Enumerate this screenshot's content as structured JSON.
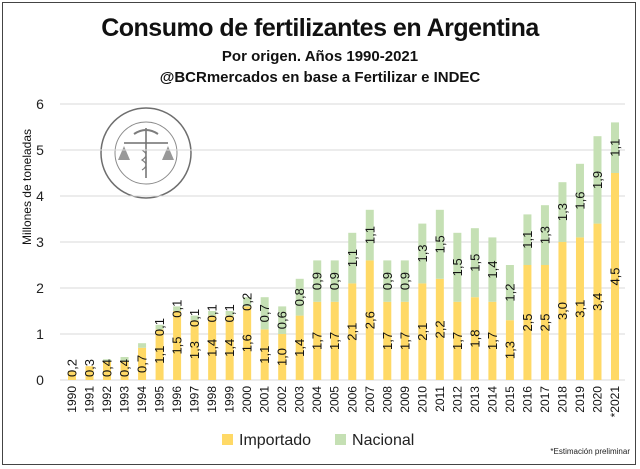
{
  "chart_data": {
    "type": "bar",
    "stacked": true,
    "title": "Consumo de fertilizantes en Argentina",
    "subtitle": "Por origen. Años 1990-2021",
    "source": "@BCRmercados en base a Fertilizar e INDEC",
    "ylabel": "Millones de toneladas",
    "ylim": [
      0,
      6
    ],
    "yticks": [
      "0",
      "1",
      "2",
      "3",
      "4",
      "5",
      "6"
    ],
    "grid": true,
    "legend_position": "bottom",
    "categories": [
      "1990",
      "1991",
      "1992",
      "1993",
      "1994",
      "1995",
      "1996",
      "1997",
      "1998",
      "1999",
      "2000",
      "2001",
      "2002",
      "2003",
      "2004",
      "2005",
      "2006",
      "2007",
      "2008",
      "2009",
      "2010",
      "2011",
      "2012",
      "2013",
      "2014",
      "2015",
      "2016",
      "2017",
      "2018",
      "2019",
      "2020",
      "*2021"
    ],
    "series": [
      {
        "name": "Importado",
        "color": "#FFD966",
        "values": [
          0.2,
          0.3,
          0.4,
          0.4,
          0.7,
          1.1,
          1.5,
          1.3,
          1.4,
          1.4,
          1.6,
          1.1,
          1.0,
          1.4,
          1.7,
          1.7,
          2.1,
          2.6,
          1.7,
          1.7,
          2.1,
          2.2,
          1.7,
          1.8,
          1.7,
          1.3,
          2.5,
          2.5,
          3.0,
          3.1,
          3.4,
          4.5
        ],
        "labels": [
          "0,2",
          "0,3",
          "0,4",
          "0,4",
          "0,7",
          "1,1",
          "1,5",
          "1,3",
          "1,4",
          "1,4",
          "1,6",
          "1,1",
          "1,0",
          "1,4",
          "1,7",
          "1,7",
          "2,1",
          "2,6",
          "1,7",
          "1,7",
          "2,1",
          "2,2",
          "1,7",
          "1,8",
          "1,7",
          "1,3",
          "2,5",
          "2,5",
          "3,0",
          "3,1",
          "3,4",
          "4,5"
        ]
      },
      {
        "name": "Nacional",
        "color": "#C5E0B4",
        "values": [
          0,
          0,
          0.05,
          0.1,
          0.1,
          0.1,
          0.1,
          0.1,
          0.1,
          0.1,
          0.2,
          0.7,
          0.6,
          0.8,
          0.9,
          0.9,
          1.1,
          1.1,
          0.9,
          0.9,
          1.3,
          1.5,
          1.5,
          1.5,
          1.4,
          1.2,
          1.1,
          1.3,
          1.3,
          1.6,
          1.9,
          1.1
        ],
        "labels": [
          "",
          "",
          "",
          "",
          "",
          "0,1",
          "0,1",
          "0,1",
          "0,1",
          "0,1",
          "0,2",
          "0,7",
          "0,6",
          "0,8",
          "0,9",
          "0,9",
          "1,1",
          "1,1",
          "0,9",
          "0,9",
          "1,3",
          "1,5",
          "1,5",
          "1,5",
          "1,4",
          "1,2",
          "1,1",
          "1,3",
          "1,3",
          "1,6",
          "1,9",
          "1,1"
        ]
      }
    ],
    "note": "*Estimación preliminar",
    "watermark": "BOLSA DE COMERCIO DE ROSARIO"
  }
}
